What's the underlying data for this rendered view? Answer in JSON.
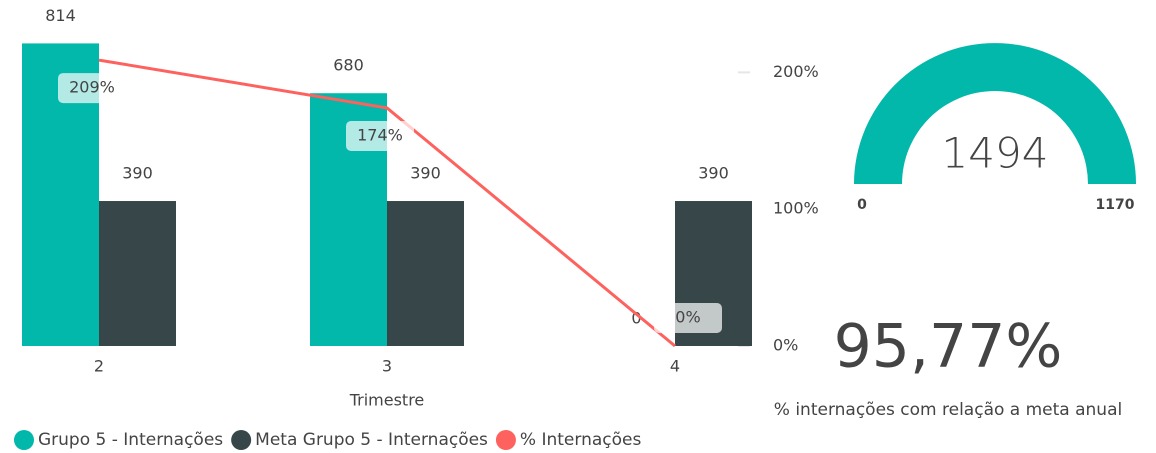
{
  "chart_data": [
    {
      "type": "combo",
      "x_label": "Trimestre",
      "categories": [
        "2",
        "3",
        "4"
      ],
      "series": [
        {
          "name": "Grupo 5 - Internações",
          "color": "#01b8aa",
          "values": [
            814,
            680,
            0
          ]
        },
        {
          "name": "Meta Grupo 5 - Internações",
          "color": "#374649",
          "values": [
            390,
            390,
            390
          ]
        },
        {
          "name": "% Internações",
          "color": "#fd625e",
          "axis": "y2",
          "values": [
            209,
            174,
            0
          ],
          "value_labels": [
            "209%",
            "174%",
            "0%"
          ]
        }
      ],
      "ylim": [
        0,
        920
      ],
      "y2lim": [
        0,
        250
      ],
      "y2ticks": [
        {
          "value": 0,
          "label": "0%"
        },
        {
          "value": 100,
          "label": "100%"
        },
        {
          "value": 200,
          "label": "200%"
        }
      ]
    },
    {
      "type": "gauge",
      "value": 1494,
      "min": 0,
      "max": 1170,
      "color": "#01b8aa"
    },
    {
      "type": "card",
      "values": [
        95.77
      ],
      "value_labels": [
        "95,77%"
      ],
      "label": "% internações com relação a meta anual"
    }
  ]
}
